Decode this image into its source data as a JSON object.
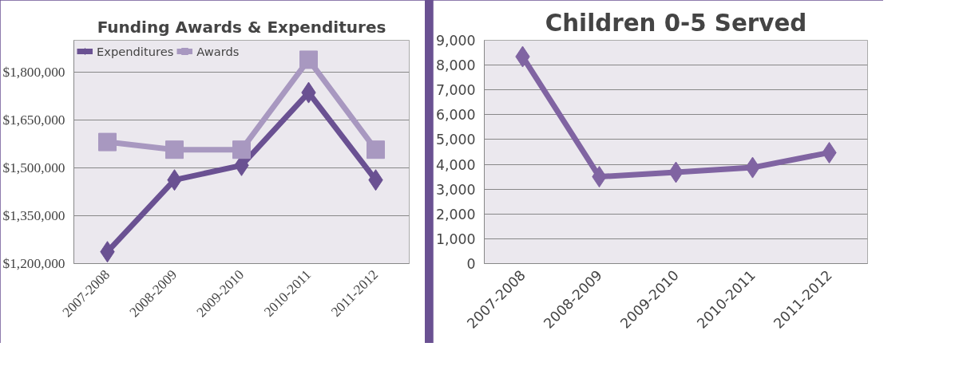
{
  "chart_data": [
    {
      "type": "line",
      "title": "Funding Awards & Expenditures",
      "categories": [
        "2007-2008",
        "2008-2009",
        "2009-2010",
        "2010-2011",
        "2011-2012"
      ],
      "series": [
        {
          "name": "Expenditures",
          "color": "#6a5192",
          "marker": "diamond",
          "values": [
            1237000,
            1462000,
            1508000,
            1736000,
            1462000
          ]
        },
        {
          "name": "Awards",
          "color": "#a898c0",
          "marker": "square",
          "values": [
            1581000,
            1557000,
            1557000,
            1839000,
            1557000
          ]
        }
      ],
      "ylim": [
        1200000,
        1900000
      ],
      "yticks": [
        {
          "value": 1200000,
          "label": "$1,200,000"
        },
        {
          "value": 1350000,
          "label": "$1,350,000"
        },
        {
          "value": 1500000,
          "label": "$1,500,000"
        },
        {
          "value": 1650000,
          "label": "$1,650,000"
        },
        {
          "value": 1800000,
          "label": "$1,800,000"
        }
      ],
      "grid": "y",
      "legend": "top left",
      "line_style": "solid"
    },
    {
      "type": "line",
      "title": "Children 0-5 Served",
      "categories": [
        "2007-2008",
        "2008-2009",
        "2009-2010",
        "2010-2011",
        "2011-2012"
      ],
      "series": [
        {
          "color": "#8064a2",
          "values": [
            8340,
            3500,
            3680,
            3870,
            4470
          ]
        }
      ],
      "ylim": [
        0,
        9000
      ],
      "yticks": [
        0,
        {
          "value": 1000,
          "label": "1,000"
        },
        {
          "value": 2000,
          "label": "2,000"
        },
        {
          "value": 3000,
          "label": "3,000"
        },
        {
          "value": 4000,
          "label": "4,000"
        },
        {
          "value": 5000,
          "label": "5,000"
        },
        {
          "value": 6000,
          "label": "6,000"
        },
        {
          "value": 7000,
          "label": "7,000"
        },
        {
          "value": 8000,
          "label": "8,000"
        },
        {
          "value": 9000,
          "label": "9,000"
        }
      ],
      "grid": "y",
      "marker": "diamond",
      "line_style": "solid"
    }
  ]
}
